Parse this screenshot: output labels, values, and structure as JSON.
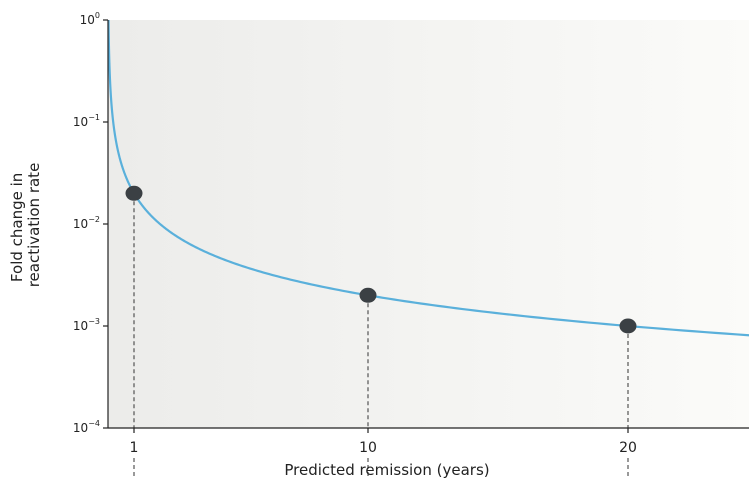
{
  "chart_data": {
    "type": "line",
    "title": "",
    "xlabel": "Predicted remission (years)",
    "ylabel_lines": [
      "Fold change in",
      "reactivation rate"
    ],
    "yscale": "log",
    "ylim": [
      0.0001,
      1
    ],
    "xlim": [
      0,
      26
    ],
    "x_ticks": [
      1,
      10,
      20
    ],
    "x_tick_labels": [
      "1",
      "10",
      "20"
    ],
    "y_ticks": [
      {
        "value": 1,
        "base": "10",
        "exp": "0"
      },
      {
        "value": 0.1,
        "base": "10",
        "exp": "−1"
      },
      {
        "value": 0.01,
        "base": "10",
        "exp": "−2"
      },
      {
        "value": 0.001,
        "base": "10",
        "exp": "−3"
      },
      {
        "value": 0.0001,
        "base": "10",
        "exp": "−4"
      }
    ],
    "series": [
      {
        "relation": "y = 0.02 / x",
        "color": "#5ab0db",
        "x_start": 0.02,
        "x_end": 26
      }
    ],
    "points": [
      {
        "x": 1,
        "y": 0.02
      },
      {
        "x": 10,
        "y": 0.002
      },
      {
        "x": 20,
        "y": 0.001
      }
    ],
    "point_color": "#3b4044",
    "grid": false,
    "background": "light-gray-gradient"
  }
}
